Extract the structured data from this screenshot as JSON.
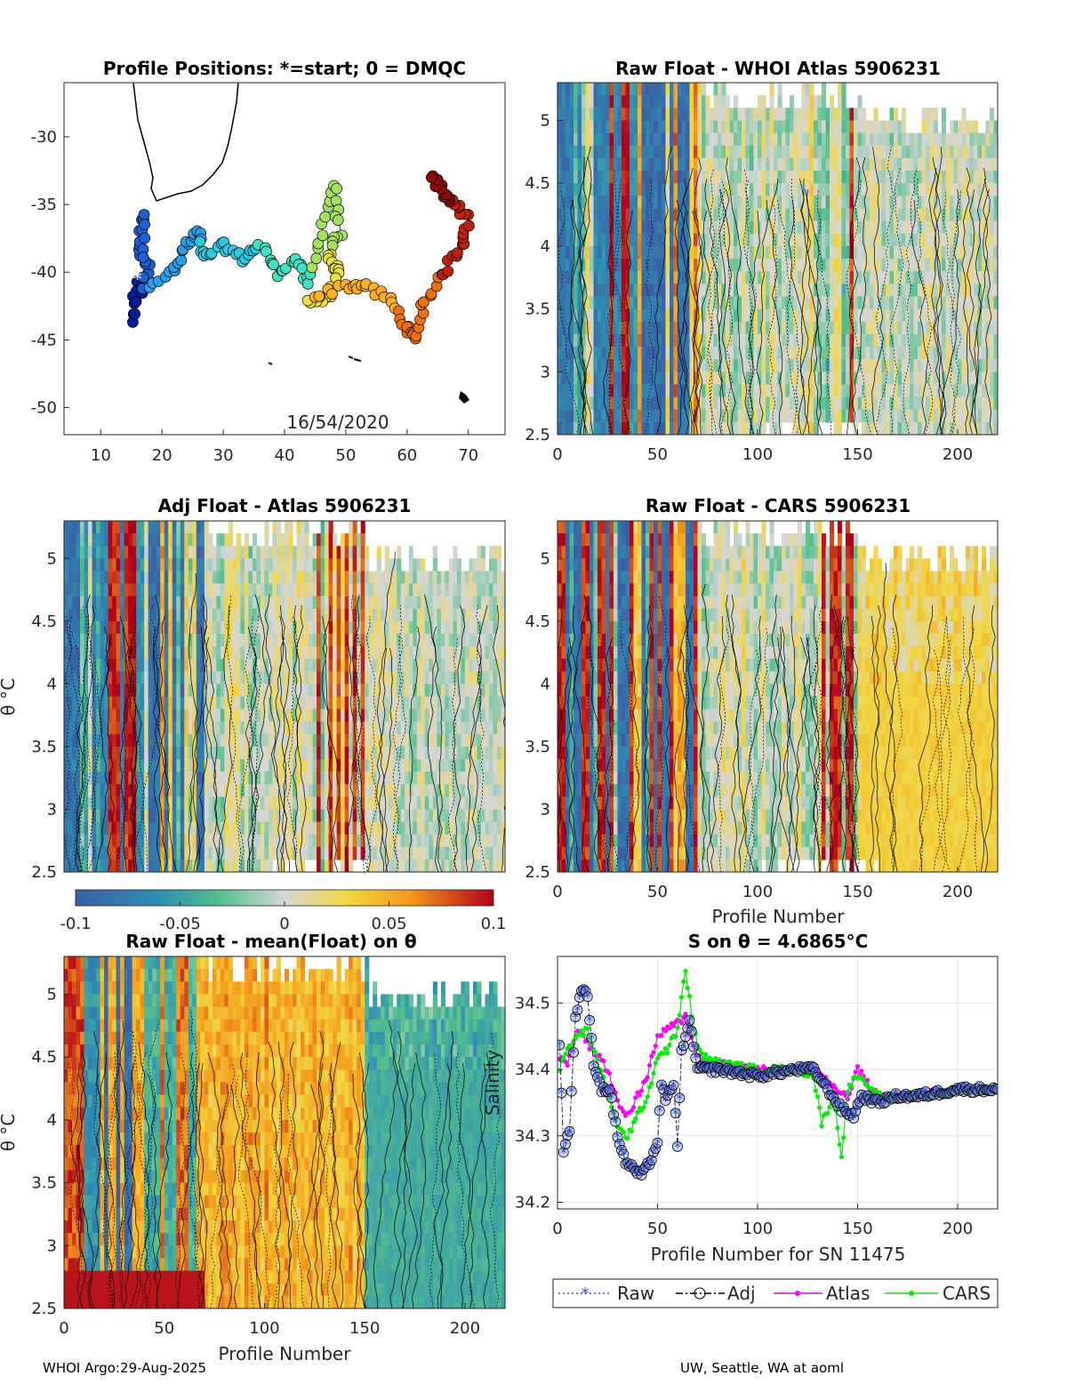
{
  "footer": {
    "left": "WHOI Argo:29-Aug-2025",
    "right": "UW, Seattle, WA at aoml"
  },
  "colors": {
    "neg": "#3a5fa3",
    "mid": "#d6d6d6",
    "pos": "#b2001a"
  },
  "chart_data": [
    {
      "id": "map",
      "type": "scatter",
      "title": "Profile Positions: *=start; 0 = DMQC",
      "xlim": [
        4,
        76
      ],
      "ylim": [
        -52,
        -26
      ],
      "xticks": [
        10,
        20,
        30,
        40,
        50,
        60,
        70
      ],
      "yticks": [
        -30,
        -35,
        -40,
        -45,
        -50
      ],
      "date_label": "16/54/2020",
      "track_waypoints": [
        [
          16,
          -40.5
        ],
        [
          15,
          -43.5
        ],
        [
          18,
          -40
        ],
        [
          16,
          -38
        ],
        [
          17,
          -35.5
        ],
        [
          17,
          -41
        ],
        [
          22,
          -40
        ],
        [
          24,
          -38
        ],
        [
          26,
          -37
        ],
        [
          27,
          -39
        ],
        [
          30,
          -38
        ],
        [
          33,
          -39
        ],
        [
          36,
          -38
        ],
        [
          39,
          -40
        ],
        [
          42,
          -39
        ],
        [
          44,
          -41
        ],
        [
          46,
          -37
        ],
        [
          48,
          -33.5
        ],
        [
          49,
          -37
        ],
        [
          47,
          -39
        ],
        [
          49,
          -40
        ],
        [
          47,
          -42
        ],
        [
          44,
          -42
        ],
        [
          50,
          -41
        ],
        [
          53,
          -41
        ],
        [
          57,
          -42
        ],
        [
          60,
          -44
        ],
        [
          61,
          -45
        ],
        [
          63,
          -42
        ],
        [
          66,
          -40
        ],
        [
          69,
          -38
        ],
        [
          70,
          -36
        ],
        [
          68,
          -35
        ],
        [
          66,
          -34
        ],
        [
          64,
          -33
        ]
      ],
      "start": [
        16,
        -40.5
      ],
      "color_scale": [
        "#0a1c9c",
        "#1e5fd8",
        "#2a9ee8",
        "#30c8e0",
        "#40e0c0",
        "#a6e060",
        "#e8e040",
        "#ffb020",
        "#f07010",
        "#c02010",
        "#8a0a0a"
      ]
    },
    {
      "id": "raw-whoi",
      "type": "heatmap",
      "title": "Raw Float - WHOI Atlas  5906231",
      "xlabel": "",
      "ylabel": "",
      "xlim": [
        0,
        220
      ],
      "ylim": [
        2.5,
        5.3
      ],
      "xticks": [
        0,
        50,
        100,
        150,
        200
      ],
      "yticks": [
        2.5,
        3,
        3.5,
        4,
        4.5,
        5
      ],
      "ytick_labels": [
        "2.5",
        "3",
        "3.5",
        "4",
        "4.5",
        "5"
      ]
    },
    {
      "id": "adj-atlas",
      "type": "heatmap",
      "title": "Adj Float - Atlas  5906231",
      "xlabel": "",
      "ylabel": "θ °C",
      "xlim": [
        0,
        220
      ],
      "ylim": [
        2.5,
        5.3
      ],
      "yticks": [
        2.5,
        3,
        3.5,
        4,
        4.5,
        5
      ],
      "ytick_labels": [
        "2.5",
        "3",
        "3.5",
        "4",
        "4.5",
        "5"
      ],
      "colorbar": {
        "range": [
          -0.1,
          0.1
        ],
        "ticks": [
          "-0.1",
          "-0.05",
          "0",
          "0.05",
          "0.1"
        ]
      }
    },
    {
      "id": "raw-cars",
      "type": "heatmap",
      "title": "Raw Float - CARS  5906231",
      "xlabel": "Profile Number",
      "ylabel": "",
      "xlim": [
        0,
        220
      ],
      "ylim": [
        2.5,
        5.3
      ],
      "xticks": [
        0,
        50,
        100,
        150,
        200
      ],
      "yticks": [
        2.5,
        3,
        3.5,
        4,
        4.5,
        5
      ],
      "ytick_labels": [
        "2.5",
        "3",
        "3.5",
        "4",
        "4.5",
        "5"
      ]
    },
    {
      "id": "raw-mean",
      "type": "heatmap",
      "title": "Raw Float - mean(Float) on θ",
      "xlabel": "Profile Number",
      "ylabel": "θ °C",
      "xlim": [
        0,
        220
      ],
      "ylim": [
        2.5,
        5.3
      ],
      "xticks": [
        0,
        50,
        100,
        150,
        200
      ],
      "yticks": [
        2.5,
        3,
        3.5,
        4,
        4.5,
        5
      ],
      "ytick_labels": [
        "2.5",
        "3",
        "3.5",
        "4",
        "4.5",
        "5"
      ]
    },
    {
      "id": "salinity",
      "type": "line",
      "title": "S on θ = 4.6865°C",
      "xlabel": "Profile Number for SN 11475",
      "ylabel": "Salinity",
      "xlim": [
        0,
        220
      ],
      "ylim": [
        34.19,
        34.57
      ],
      "xticks": [
        0,
        50,
        100,
        150,
        200
      ],
      "yticks": [
        34.2,
        34.3,
        34.4,
        34.5
      ],
      "ytick_labels": [
        "34.2",
        "34.3",
        "34.4",
        "34.5"
      ],
      "legend": [
        "Raw",
        "Adj",
        "Atlas",
        "CARS"
      ],
      "raw_waypoints": [
        [
          1,
          34.44
        ],
        [
          3,
          34.28
        ],
        [
          6,
          34.31
        ],
        [
          9,
          34.48
        ],
        [
          12,
          34.52
        ],
        [
          15,
          34.51
        ],
        [
          18,
          34.41
        ],
        [
          22,
          34.37
        ],
        [
          26,
          34.37
        ],
        [
          30,
          34.3
        ],
        [
          34,
          34.26
        ],
        [
          38,
          34.25
        ],
        [
          42,
          34.24
        ],
        [
          46,
          34.26
        ],
        [
          50,
          34.29
        ],
        [
          52,
          34.38
        ],
        [
          54,
          34.35
        ],
        [
          58,
          34.38
        ],
        [
          60,
          34.28
        ],
        [
          62,
          34.43
        ],
        [
          66,
          34.47
        ],
        [
          70,
          34.4
        ],
        [
          80,
          34.4
        ],
        [
          100,
          34.39
        ],
        [
          120,
          34.4
        ],
        [
          128,
          34.4
        ],
        [
          135,
          34.37
        ],
        [
          142,
          34.34
        ],
        [
          148,
          34.33
        ],
        [
          152,
          34.36
        ],
        [
          160,
          34.35
        ],
        [
          170,
          34.36
        ],
        [
          180,
          34.36
        ],
        [
          200,
          34.37
        ],
        [
          220,
          34.37
        ]
      ],
      "atlas_waypoints": [
        [
          1,
          34.42
        ],
        [
          5,
          34.41
        ],
        [
          10,
          34.46
        ],
        [
          15,
          34.44
        ],
        [
          20,
          34.42
        ],
        [
          25,
          34.4
        ],
        [
          30,
          34.35
        ],
        [
          35,
          34.33
        ],
        [
          40,
          34.36
        ],
        [
          45,
          34.39
        ],
        [
          50,
          34.45
        ],
        [
          55,
          34.46
        ],
        [
          60,
          34.47
        ],
        [
          64,
          34.48
        ],
        [
          68,
          34.44
        ],
        [
          72,
          34.41
        ],
        [
          80,
          34.41
        ],
        [
          100,
          34.4
        ],
        [
          120,
          34.4
        ],
        [
          128,
          34.4
        ],
        [
          135,
          34.38
        ],
        [
          145,
          34.36
        ],
        [
          150,
          34.4
        ],
        [
          155,
          34.38
        ],
        [
          160,
          34.36
        ],
        [
          180,
          34.36
        ],
        [
          200,
          34.37
        ],
        [
          220,
          34.37
        ]
      ],
      "cars_waypoints": [
        [
          1,
          34.4
        ],
        [
          5,
          34.43
        ],
        [
          10,
          34.45
        ],
        [
          15,
          34.46
        ],
        [
          20,
          34.41
        ],
        [
          25,
          34.37
        ],
        [
          30,
          34.31
        ],
        [
          35,
          34.3
        ],
        [
          40,
          34.33
        ],
        [
          45,
          34.36
        ],
        [
          50,
          34.42
        ],
        [
          55,
          34.43
        ],
        [
          60,
          34.46
        ],
        [
          64,
          34.55
        ],
        [
          68,
          34.46
        ],
        [
          72,
          34.42
        ],
        [
          80,
          34.41
        ],
        [
          100,
          34.4
        ],
        [
          120,
          34.4
        ],
        [
          128,
          34.39
        ],
        [
          132,
          34.32
        ],
        [
          138,
          34.36
        ],
        [
          142,
          34.27
        ],
        [
          145,
          34.37
        ],
        [
          150,
          34.39
        ],
        [
          155,
          34.37
        ],
        [
          160,
          34.36
        ],
        [
          180,
          34.36
        ],
        [
          200,
          34.37
        ],
        [
          220,
          34.37
        ]
      ]
    }
  ]
}
